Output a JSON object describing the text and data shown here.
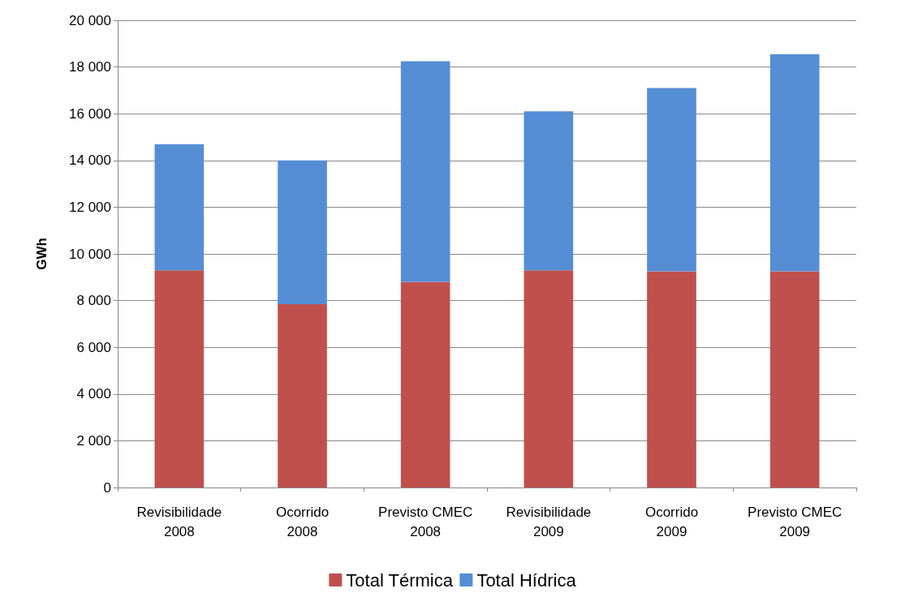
{
  "chart_data": {
    "type": "bar",
    "stacked": true,
    "ylabel": "GWh",
    "categories": [
      "Revisibilidade\n2008",
      "Ocorrido\n2008",
      "Previsto CMEC\n2008",
      "Revisibilidade\n2009",
      "Ocorrido\n2009",
      "Previsto CMEC\n2009"
    ],
    "series": [
      {
        "name": "Total Térmica",
        "color": "#c0504d",
        "values": [
          9300,
          7850,
          8800,
          9300,
          9250,
          9250
        ]
      },
      {
        "name": "Total Hídrica",
        "color": "#558ed5",
        "values": [
          5400,
          6150,
          9450,
          6800,
          7850,
          9300
        ]
      }
    ],
    "ylim": [
      0,
      20000
    ],
    "yticks": [
      {
        "value": 0,
        "label": "0"
      },
      {
        "value": 2000,
        "label": "2 000"
      },
      {
        "value": 4000,
        "label": "4 000"
      },
      {
        "value": 6000,
        "label": "6 000"
      },
      {
        "value": 8000,
        "label": "8 000"
      },
      {
        "value": 10000,
        "label": "10 000"
      },
      {
        "value": 12000,
        "label": "12 000"
      },
      {
        "value": 14000,
        "label": "14 000"
      },
      {
        "value": 16000,
        "label": "16 000"
      },
      {
        "value": 18000,
        "label": "18 000"
      },
      {
        "value": 20000,
        "label": "20 000"
      }
    ],
    "grid": "y",
    "legend": "bottom"
  }
}
